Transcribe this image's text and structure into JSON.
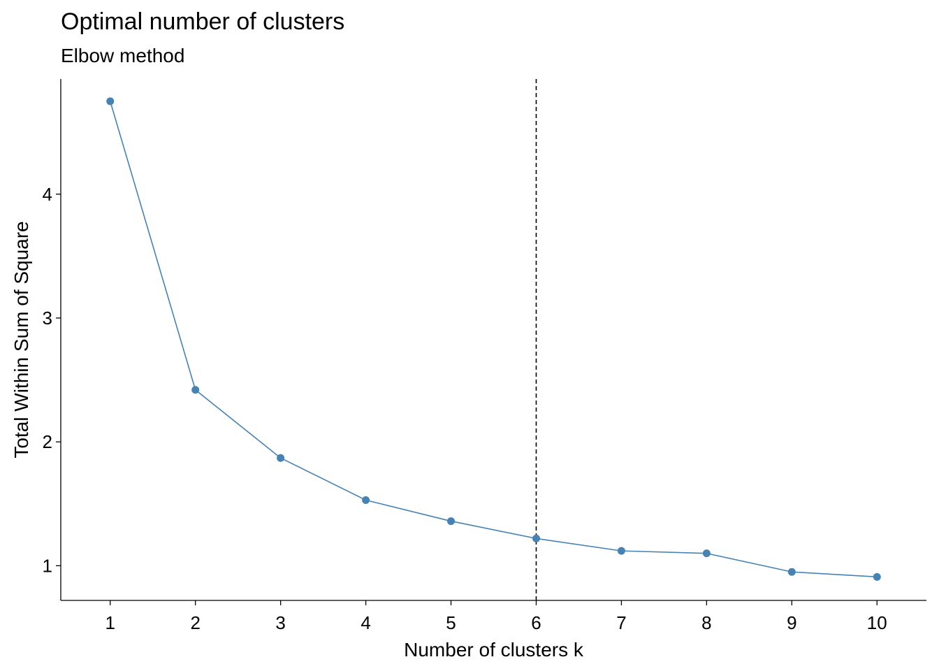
{
  "chart_data": {
    "type": "line",
    "title": "Optimal number of clusters",
    "subtitle": "Elbow method",
    "xlabel": "Number of clusters k",
    "ylabel": "Total Within Sum of Square",
    "x": [
      1,
      2,
      3,
      4,
      5,
      6,
      7,
      8,
      9,
      10
    ],
    "series": [
      {
        "values": [
          4.75,
          2.42,
          1.87,
          1.53,
          1.36,
          1.22,
          1.12,
          1.1,
          0.95,
          0.91
        ]
      }
    ],
    "x_ticks": [
      "1",
      "2",
      "3",
      "4",
      "5",
      "6",
      "7",
      "8",
      "9",
      "10"
    ],
    "y_ticks": [
      "1",
      "2",
      "3",
      "4"
    ],
    "y_tick_values": [
      1,
      2,
      3,
      4
    ],
    "xlim": [
      0.42,
      10.58
    ],
    "ylim": [
      0.72,
      4.93
    ],
    "vline_x": 6,
    "vline_style": "dashed",
    "grid": false,
    "colors": {
      "series": "#4682B4",
      "axis": "#000000",
      "vline": "#000000"
    }
  }
}
